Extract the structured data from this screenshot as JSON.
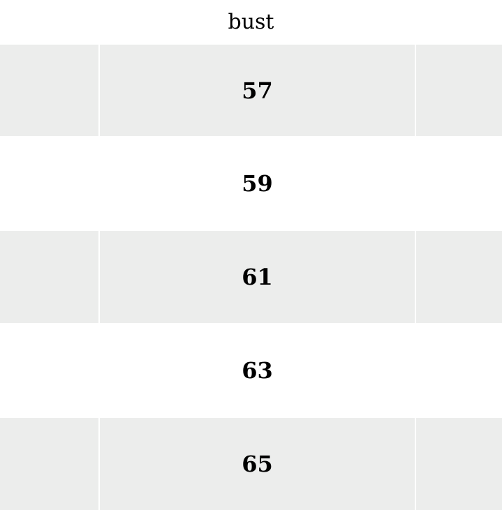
{
  "table": {
    "header": "bust",
    "rows": [
      "57",
      "59",
      "61",
      "63",
      "65"
    ],
    "stripe_color": "#ecedec"
  }
}
